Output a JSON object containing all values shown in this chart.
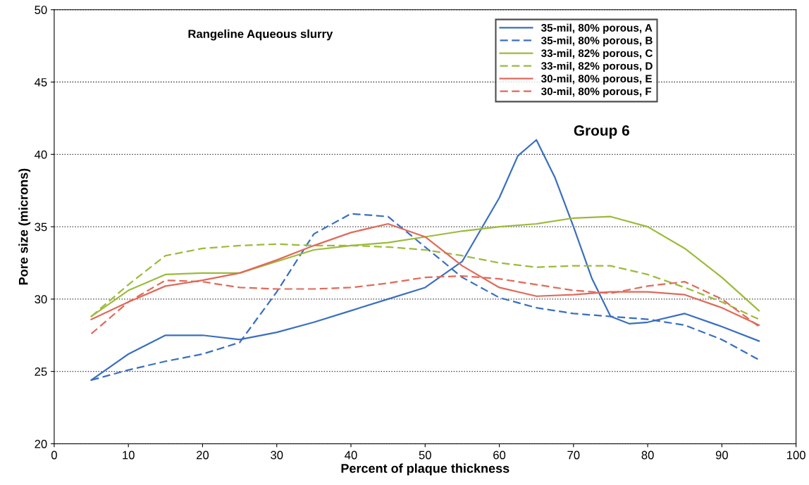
{
  "chart_data": {
    "type": "line",
    "xlabel": "Percent of plaque thickness",
    "ylabel": "Pore size (microns)",
    "annotations": [
      "Rangeline Aqueous slurry",
      "Group 6"
    ],
    "x": [
      5,
      10,
      15,
      20,
      25,
      30,
      35,
      40,
      45,
      50,
      55,
      60,
      65,
      70,
      75,
      80,
      85,
      90,
      95
    ],
    "xlim": [
      0,
      100
    ],
    "xticks": [
      0,
      10,
      20,
      30,
      40,
      50,
      60,
      70,
      80,
      90,
      100
    ],
    "ylim": [
      20,
      50
    ],
    "yticks": [
      20,
      25,
      30,
      35,
      40,
      45,
      50
    ],
    "grid": "y",
    "legend": "top right",
    "marker": "none",
    "series": [
      {
        "name": "35-mil, 80% porous, A",
        "color": "#3a6fc0",
        "line_style": "solid",
        "x": [
          5,
          10,
          15,
          20,
          25,
          30,
          35,
          40,
          45,
          50,
          55,
          57.5,
          60,
          62.5,
          65,
          67.5,
          70,
          72.5,
          75,
          77.5,
          80,
          85,
          90,
          95
        ],
        "values": [
          24.4,
          26.2,
          27.5,
          27.5,
          27.2,
          27.7,
          28.4,
          29.2,
          30.0,
          30.8,
          32.6,
          34.8,
          37.0,
          39.9,
          41.0,
          38.4,
          35.0,
          31.4,
          28.8,
          28.3,
          28.4,
          29.0,
          28.1,
          27.1
        ]
      },
      {
        "name": "35-mil, 80% porous, B",
        "color": "#3a6fc0",
        "line_style": "dashed",
        "values": [
          24.4,
          25.1,
          25.7,
          26.2,
          27.0,
          30.5,
          34.5,
          35.9,
          35.7,
          33.6,
          31.5,
          30.1,
          29.4,
          29.0,
          28.8,
          28.6,
          28.2,
          27.2,
          25.8
        ]
      },
      {
        "name": "33-mil, 82% porous, C",
        "color": "#9bbb3b",
        "line_style": "solid",
        "values": [
          28.8,
          30.6,
          31.7,
          31.8,
          31.8,
          32.6,
          33.4,
          33.7,
          33.9,
          34.3,
          34.7,
          35.0,
          35.2,
          35.6,
          35.7,
          35.0,
          33.5,
          31.5,
          29.2
        ]
      },
      {
        "name": "33-mil, 82% porous, D",
        "color": "#9bbb3b",
        "line_style": "dashed",
        "values": [
          28.8,
          31.0,
          33.0,
          33.5,
          33.7,
          33.8,
          33.7,
          33.7,
          33.6,
          33.4,
          33.0,
          32.5,
          32.2,
          32.3,
          32.3,
          31.7,
          30.8,
          29.8,
          28.6
        ]
      },
      {
        "name": "30-mil, 80% porous, E",
        "color": "#e06a5a",
        "line_style": "solid",
        "values": [
          28.6,
          29.8,
          30.9,
          31.3,
          31.8,
          32.7,
          33.7,
          34.6,
          35.2,
          34.3,
          32.3,
          30.8,
          30.2,
          30.3,
          30.5,
          30.5,
          30.3,
          29.4,
          28.2
        ]
      },
      {
        "name": "30-mil, 80% porous, F",
        "color": "#e06a5a",
        "line_style": "dashed",
        "values": [
          27.6,
          29.8,
          31.3,
          31.2,
          30.8,
          30.7,
          30.7,
          30.8,
          31.1,
          31.5,
          31.6,
          31.4,
          31.0,
          30.6,
          30.4,
          30.9,
          31.2,
          30.0,
          28.1
        ]
      }
    ]
  }
}
